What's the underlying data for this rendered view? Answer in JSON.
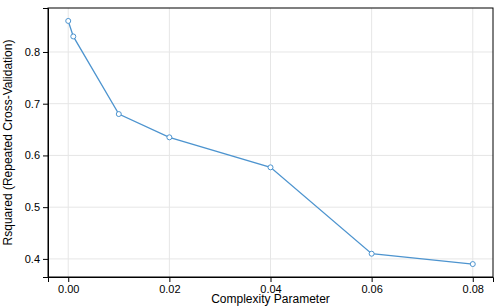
{
  "chart_data": {
    "type": "line",
    "x_label": "Complexity Parameter",
    "y_label": "Rsquared (Repeated Cross-Validation)",
    "x": [
      0,
      0.001,
      0.01,
      0.02,
      0.04,
      0.06,
      0.08
    ],
    "values": [
      0.86,
      0.83,
      0.68,
      0.635,
      0.577,
      0.41,
      0.39
    ],
    "color": "#4d94cf",
    "marker": "circle",
    "line_style": "solid",
    "xlim": [
      -0.004,
      0.084
    ],
    "ylim": [
      0.365,
      0.885
    ],
    "xticks": [
      {
        "value": 0,
        "label": "0.00"
      },
      {
        "value": 0.02,
        "label": "0.02"
      },
      {
        "value": 0.04,
        "label": "0.04"
      },
      {
        "value": 0.06,
        "label": "0.06"
      },
      {
        "value": 0.08,
        "label": "0.08"
      }
    ],
    "yticks": [
      0.4,
      0.5,
      0.6,
      0.7,
      0.8
    ],
    "grid": true
  }
}
